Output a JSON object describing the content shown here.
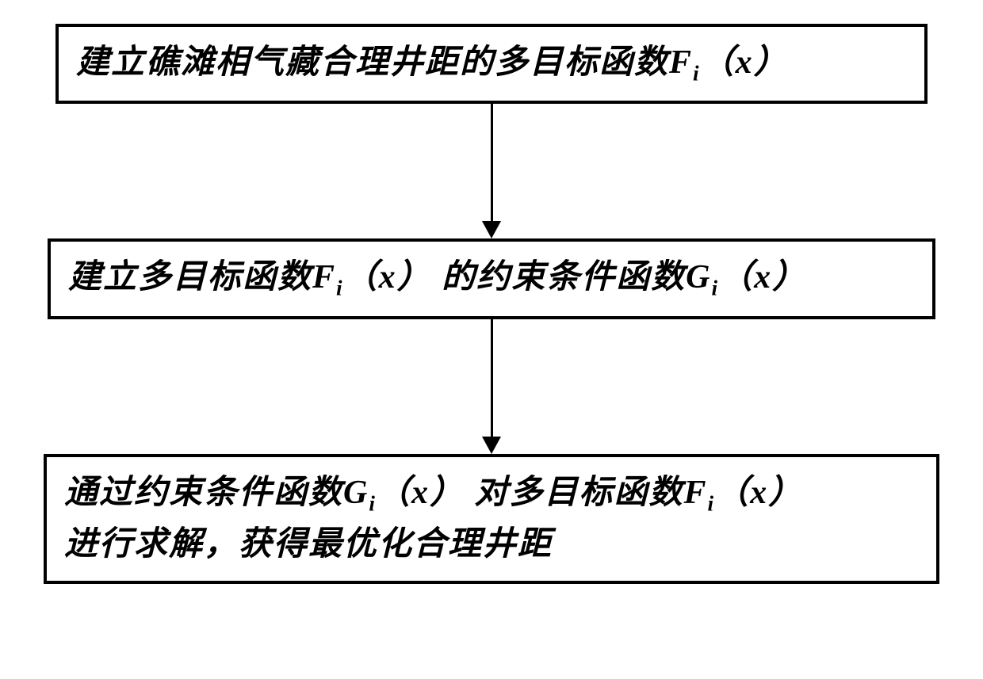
{
  "flowchart": {
    "type": "flowchart",
    "direction": "vertical",
    "box_border_color": "#000000",
    "box_border_width": 4,
    "box_background": "#ffffff",
    "text_color": "#000000",
    "font_size": 42,
    "font_weight": "bold",
    "font_style": "italic",
    "arrow_color": "#000000",
    "arrow_line_width": 3,
    "arrow_head_width": 24,
    "arrow_head_height": 22,
    "arrow_gap_height": 170,
    "steps": [
      {
        "id": "step1",
        "text_prefix": "建立礁滩相气藏合理井距的多目标函数",
        "formula_base": "F",
        "formula_sub": "i",
        "formula_arg": "x",
        "text_suffix": ""
      },
      {
        "id": "step2",
        "text_prefix": "建立多目标函数",
        "formula1_base": "F",
        "formula1_sub": "i",
        "formula1_arg": "x",
        "text_mid": " 的约束条件函数",
        "formula2_base": "G",
        "formula2_sub": "i",
        "formula2_arg": "x",
        "text_suffix": ""
      },
      {
        "id": "step3",
        "line1_prefix": "通过约束条件函数",
        "line1_formula1_base": "G",
        "line1_formula1_sub": "i",
        "line1_formula1_arg": "x",
        "line1_mid": " 对多目标函数",
        "line1_formula2_base": "F",
        "line1_formula2_sub": "i",
        "line1_formula2_arg": "x",
        "line2": "进行求解，获得最优化合理井距"
      }
    ]
  }
}
